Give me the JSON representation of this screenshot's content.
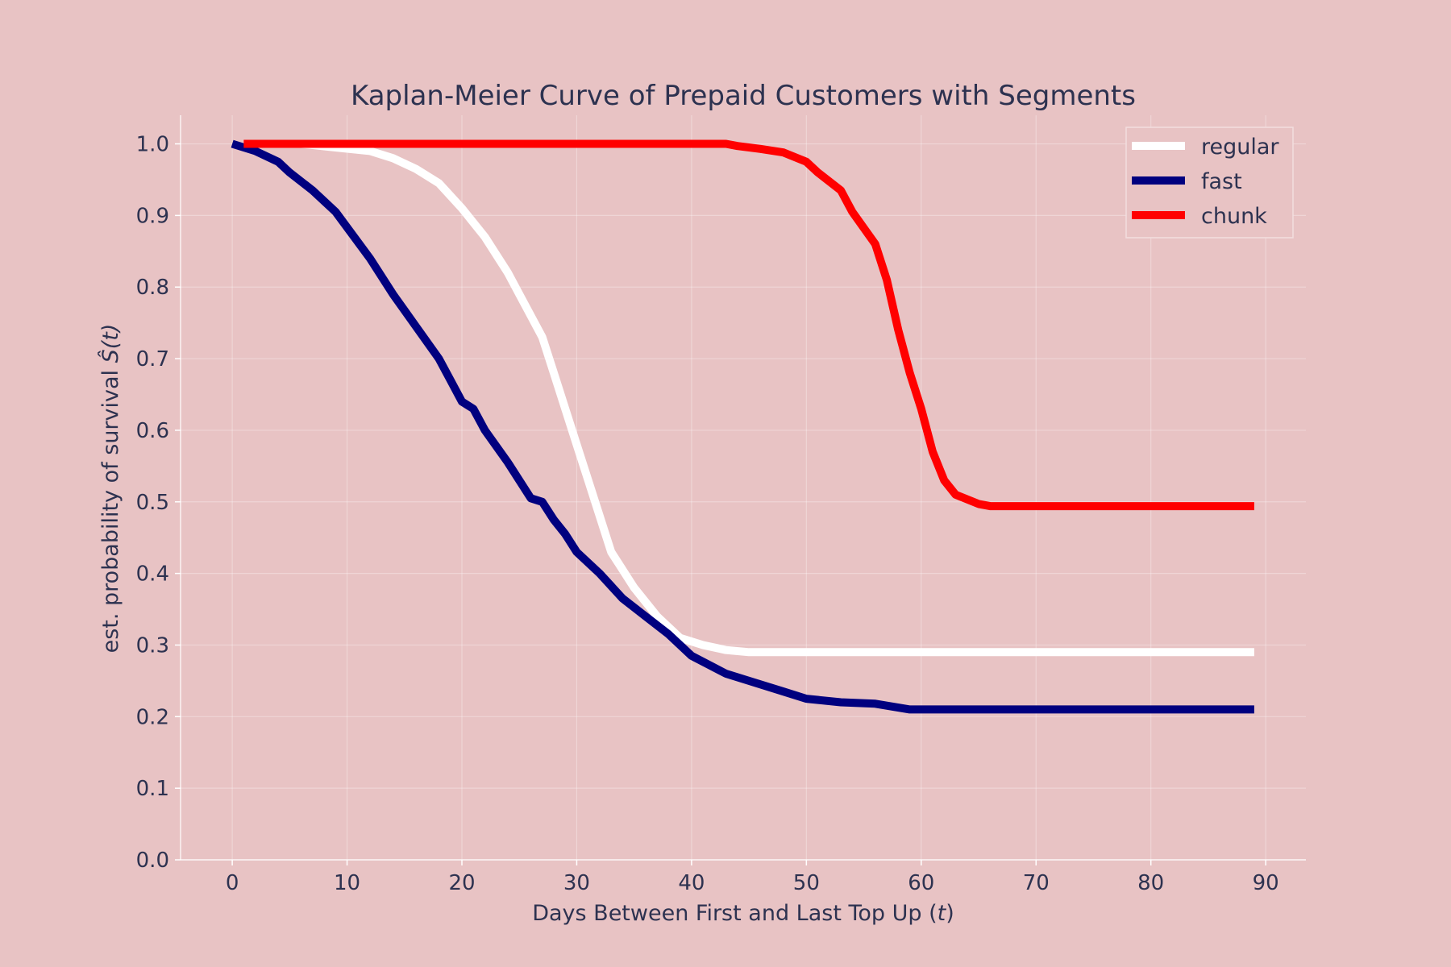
{
  "chart_data": {
    "type": "line",
    "title": "Kaplan-Meier Curve of Prepaid Customers with Segments",
    "xlabel": "Days Between First and Last Top Up (",
    "xlabel_var": "t",
    "xlabel_tail": ")",
    "ylabel": "est. probability of survival ",
    "ylabel_var": "Ŝ(t)",
    "xlim": [
      -4.5,
      93.5
    ],
    "ylim": [
      0.0,
      1.04
    ],
    "xticks": [
      "0",
      "10",
      "20",
      "30",
      "40",
      "50",
      "60",
      "70",
      "80",
      "90"
    ],
    "yticks": [
      "0.0",
      "0.1",
      "0.2",
      "0.3",
      "0.4",
      "0.5",
      "0.6",
      "0.7",
      "0.8",
      "0.9",
      "1.0"
    ],
    "grid": true,
    "legend_position": "top-right",
    "series": [
      {
        "name": "regular",
        "color": "#ffffff",
        "points": [
          [
            1,
            1.0
          ],
          [
            6,
            1.0
          ],
          [
            9,
            0.995
          ],
          [
            12,
            0.99
          ],
          [
            14,
            0.98
          ],
          [
            16,
            0.965
          ],
          [
            18,
            0.945
          ],
          [
            20,
            0.91
          ],
          [
            22,
            0.87
          ],
          [
            24,
            0.82
          ],
          [
            25,
            0.79
          ],
          [
            27,
            0.73
          ],
          [
            28,
            0.68
          ],
          [
            29,
            0.63
          ],
          [
            30,
            0.58
          ],
          [
            31,
            0.53
          ],
          [
            33,
            0.43
          ],
          [
            35,
            0.38
          ],
          [
            37,
            0.34
          ],
          [
            39,
            0.31
          ],
          [
            41,
            0.3
          ],
          [
            43,
            0.293
          ],
          [
            45,
            0.29
          ],
          [
            50,
            0.29
          ],
          [
            89,
            0.29
          ]
        ]
      },
      {
        "name": "fast",
        "color": "#00007f",
        "points": [
          [
            0,
            1.0
          ],
          [
            2,
            0.99
          ],
          [
            4,
            0.975
          ],
          [
            5,
            0.96
          ],
          [
            7,
            0.935
          ],
          [
            9,
            0.905
          ],
          [
            12,
            0.84
          ],
          [
            14,
            0.79
          ],
          [
            16,
            0.745
          ],
          [
            18,
            0.7
          ],
          [
            19,
            0.67
          ],
          [
            20,
            0.64
          ],
          [
            21,
            0.63
          ],
          [
            22,
            0.6
          ],
          [
            24,
            0.555
          ],
          [
            26,
            0.505
          ],
          [
            27,
            0.5
          ],
          [
            28,
            0.475
          ],
          [
            29,
            0.455
          ],
          [
            30,
            0.43
          ],
          [
            32,
            0.4
          ],
          [
            34,
            0.365
          ],
          [
            36,
            0.34
          ],
          [
            38,
            0.315
          ],
          [
            40,
            0.285
          ],
          [
            43,
            0.26
          ],
          [
            45,
            0.25
          ],
          [
            48,
            0.235
          ],
          [
            50,
            0.225
          ],
          [
            53,
            0.22
          ],
          [
            56,
            0.218
          ],
          [
            59,
            0.21
          ],
          [
            89,
            0.21
          ]
        ]
      },
      {
        "name": "chunk",
        "color": "#ff0000",
        "points": [
          [
            1,
            1.0
          ],
          [
            43,
            1.0
          ],
          [
            44,
            0.997
          ],
          [
            46,
            0.993
          ],
          [
            48,
            0.988
          ],
          [
            50,
            0.975
          ],
          [
            51,
            0.96
          ],
          [
            53,
            0.935
          ],
          [
            54,
            0.905
          ],
          [
            56,
            0.86
          ],
          [
            57,
            0.81
          ],
          [
            58,
            0.74
          ],
          [
            59,
            0.68
          ],
          [
            60,
            0.63
          ],
          [
            61,
            0.57
          ],
          [
            62,
            0.53
          ],
          [
            63,
            0.51
          ],
          [
            65,
            0.497
          ],
          [
            66,
            0.494
          ],
          [
            89,
            0.494
          ]
        ]
      }
    ]
  }
}
